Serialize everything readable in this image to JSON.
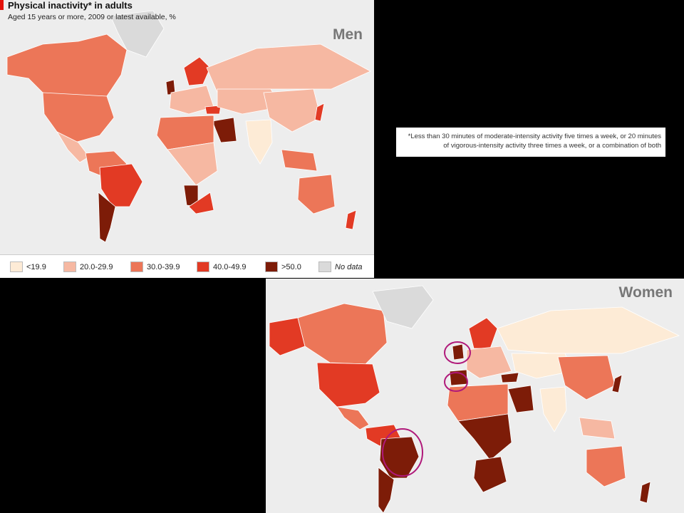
{
  "men": {
    "title": "Physical inactivity* in adults",
    "subtitle": "Aged 15 years or more, 2009 or latest available, %",
    "label": "Men"
  },
  "women": {
    "label": "Women"
  },
  "legend": [
    {
      "label": "<19.9",
      "color": "#fdebd6",
      "italic": false
    },
    {
      "label": "20.0-29.9",
      "color": "#f6b8a2",
      "italic": false
    },
    {
      "label": "30.0-39.9",
      "color": "#ec7658",
      "italic": false
    },
    {
      "label": "40.0-49.9",
      "color": "#e23a24",
      "italic": false
    },
    {
      "label": ">50.0",
      "color": "#7d1c08",
      "italic": false
    },
    {
      "label": "No data",
      "color": "#dadada",
      "italic": true
    }
  ],
  "footnote": {
    "line1": "*Less than 30 minutes of moderate-intensity activity five times a week, or 20 minutes",
    "line2": "of vigorous-intensity activity three times a week, or a combination of both"
  },
  "colors": {
    "ocean": "#ededed",
    "highlight_circle": "#b0197a"
  }
}
